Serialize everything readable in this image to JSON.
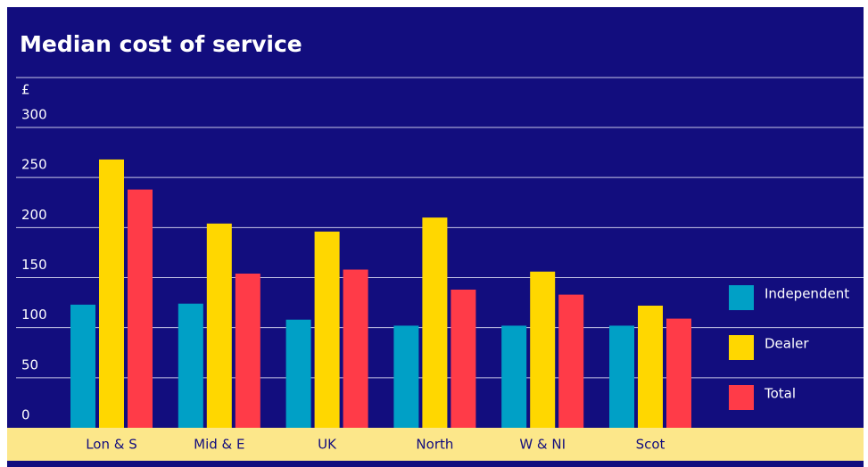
{
  "chart_data": {
    "type": "bar",
    "title": "Median cost of service",
    "y_unit": "£",
    "categories": [
      "Lon & S",
      "Mid & E",
      "UK",
      "North",
      "W & NI",
      "Scot"
    ],
    "series": [
      {
        "name": "Independent",
        "color": "#00a0c6",
        "values": [
          123,
          124,
          108,
          102,
          102,
          102
        ]
      },
      {
        "name": "Dealer",
        "color": "#ffd700",
        "values": [
          268,
          204,
          196,
          210,
          156,
          122
        ]
      },
      {
        "name": "Total",
        "color": "#ff3b48",
        "values": [
          238,
          154,
          158,
          138,
          133,
          109
        ]
      }
    ],
    "ylim": [
      0,
      300
    ],
    "yticks": [
      0,
      50,
      100,
      150,
      200,
      250,
      300
    ],
    "grid": true,
    "legend": "right"
  }
}
